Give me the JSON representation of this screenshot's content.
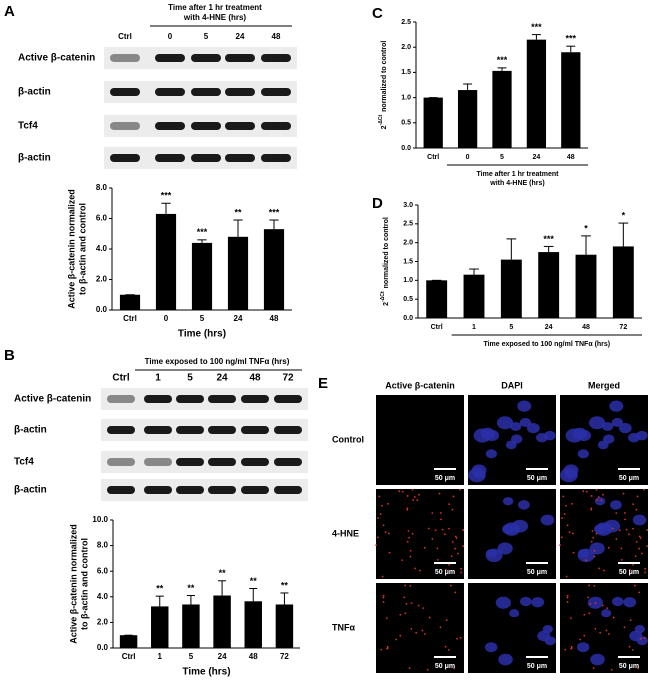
{
  "panel_labels": [
    "A",
    "B",
    "C",
    "D",
    "E"
  ],
  "blots": [
    {
      "header": [
        "Time after 1 hr treatment",
        "with 4-HNE (hrs)"
      ],
      "lanes": [
        "Ctrl",
        "0",
        "5",
        "24",
        "48"
      ],
      "rows": [
        "Active β-catenin",
        "β-actin",
        "Tcf4",
        "β-actin"
      ]
    },
    {
      "header": [
        "Time exposed to 100 ng/ml TNFα (hrs)"
      ],
      "lanes": [
        "Ctrl",
        "1",
        "5",
        "24",
        "48",
        "72"
      ],
      "rows": [
        "Active β-catenin",
        "β-actin",
        "Tcf4",
        "β-actin"
      ]
    }
  ],
  "chart_data": [
    {
      "type": "bar",
      "ylabel": [
        "Active β-catenin normalized",
        "to β-actin and control"
      ],
      "xlabel": [
        "Time (hrs)"
      ],
      "categories": [
        "Ctrl",
        "0",
        "5",
        "24",
        "48"
      ],
      "values": [
        1.0,
        6.3,
        4.4,
        4.8,
        5.3
      ],
      "errors": [
        0,
        0.7,
        0.2,
        1.1,
        0.6
      ],
      "annotations": [
        null,
        "***",
        "***",
        "**",
        "***"
      ],
      "color": "#000000",
      "ylim": [
        0,
        8
      ],
      "yticks": [
        {
          "value": 0,
          "label": "0.0"
        },
        {
          "value": 2,
          "label": "2.0"
        },
        {
          "value": 4,
          "label": "4.0"
        },
        {
          "value": 6,
          "label": "6.0"
        },
        {
          "value": 8,
          "label": "8.0"
        }
      ]
    },
    {
      "type": "bar",
      "ylabel": [
        "Active β-catenin normalized",
        "to β-actin and control"
      ],
      "xlabel": [
        "Time (hrs)"
      ],
      "categories": [
        "Ctrl",
        "1",
        "5",
        "24",
        "48",
        "72"
      ],
      "values": [
        1.0,
        3.25,
        3.4,
        4.1,
        3.65,
        3.4
      ],
      "errors": [
        0,
        0.8,
        0.7,
        1.15,
        1.0,
        0.9
      ],
      "annotations": [
        null,
        "**",
        "**",
        "**",
        "**",
        "**"
      ],
      "color": "#000000",
      "ylim": [
        0,
        10
      ],
      "yticks": [
        {
          "value": 0,
          "label": "0.0"
        },
        {
          "value": 2,
          "label": "2.0"
        },
        {
          "value": 4,
          "label": "4.0"
        },
        {
          "value": 6,
          "label": "6.0"
        },
        {
          "value": 8,
          "label": "8.0"
        },
        {
          "value": 10,
          "label": "10.0"
        }
      ]
    },
    {
      "type": "bar",
      "ylabel": {
        "base": "2",
        "sup": "-ΔCt",
        "rest": "normalized to control"
      },
      "xlabel": [
        "Time after 1 hr treatment",
        "with 4-HNE (hrs)"
      ],
      "xlabel_bracket": true,
      "categories": [
        "Ctrl",
        "0",
        "5",
        "24",
        "48"
      ],
      "values": [
        1.0,
        1.15,
        1.53,
        2.15,
        1.9
      ],
      "errors": [
        0,
        0.12,
        0.06,
        0.1,
        0.12
      ],
      "annotations": [
        null,
        null,
        "***",
        "***",
        "***"
      ],
      "color": "#000000",
      "ylim": [
        0,
        2.5
      ],
      "yticks": [
        {
          "value": 0,
          "label": "0.0"
        },
        {
          "value": 0.5,
          "label": "0.5"
        },
        {
          "value": 1,
          "label": "1.0"
        },
        {
          "value": 1.5,
          "label": "1.5"
        },
        {
          "value": 2,
          "label": "2.0"
        },
        {
          "value": 2.5,
          "label": "2.5"
        }
      ]
    },
    {
      "type": "bar",
      "ylabel": {
        "base": "2",
        "sup": "-ΔCt",
        "rest": "normalized to control"
      },
      "xlabel": [
        "Time exposed to 100 ng/ml TNFα (hrs)"
      ],
      "xlabel_bracket": true,
      "categories": [
        "Ctrl",
        "1",
        "5",
        "24",
        "48",
        "72"
      ],
      "values": [
        1.0,
        1.15,
        1.55,
        1.75,
        1.68,
        1.9
      ],
      "errors": [
        0,
        0.15,
        0.55,
        0.15,
        0.5,
        0.62
      ],
      "annotations": [
        null,
        null,
        null,
        "***",
        "*",
        "*"
      ],
      "color": "#000000",
      "ylim": [
        0,
        3
      ],
      "yticks": [
        {
          "value": 0,
          "label": "0.0"
        },
        {
          "value": 0.5,
          "label": "0.5"
        },
        {
          "value": 1,
          "label": "1.0"
        },
        {
          "value": 1.5,
          "label": "1.5"
        },
        {
          "value": 2,
          "label": "2.0"
        },
        {
          "value": 2.5,
          "label": "2.5"
        },
        {
          "value": 3,
          "label": "3.0"
        }
      ]
    }
  ],
  "microscopy": {
    "columns": [
      "Active β-catenin",
      "DAPI",
      "Merged"
    ],
    "rows": [
      "Control",
      "4-HNE",
      "TNFα"
    ],
    "scale_bar": "50 μm"
  }
}
